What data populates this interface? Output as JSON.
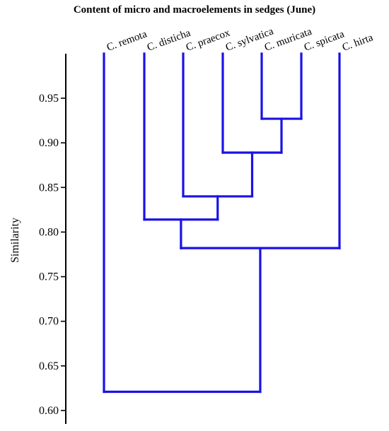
{
  "chart_data": {
    "type": "dendrogram",
    "title": "Content of micro and macroelements in sedges (June)",
    "ylabel": "Similarity",
    "xlabel": "",
    "ylim": [
      0.6,
      1.0
    ],
    "yticks": [
      0.6,
      0.65,
      0.7,
      0.75,
      0.8,
      0.85,
      0.9,
      0.95
    ],
    "ytick_labels": [
      "0.60",
      "0.65",
      "0.70",
      "0.75",
      "0.80",
      "0.85",
      "0.90",
      "0.95"
    ],
    "leaves": [
      "C. remota",
      "C. disticha",
      "C. praecox",
      "C. sylvatica",
      "C. muricata",
      "C. spicata",
      "C. hirta"
    ],
    "merges": [
      {
        "left": "C. muricata",
        "right": "C. spicata",
        "similarity": 0.927
      },
      {
        "left": "C. sylvatica",
        "right": "C. muricata + C. spicata",
        "similarity": 0.889
      },
      {
        "left": "C. praecox",
        "right": "C. sylvatica + C. muricata + C. spicata",
        "similarity": 0.84
      },
      {
        "left": "C. disticha",
        "right": "C. praecox + C. sylvatica + C. muricata + C. spicata",
        "similarity": 0.814
      },
      {
        "left": "C. disticha … C. spicata",
        "right": "C. hirta",
        "similarity": 0.782
      },
      {
        "left": "C. remota",
        "right": "C. disticha … C. hirta",
        "similarity": 0.621
      }
    ],
    "grid": false,
    "line_color": "#1a12e6",
    "axis_color": "#000000"
  }
}
